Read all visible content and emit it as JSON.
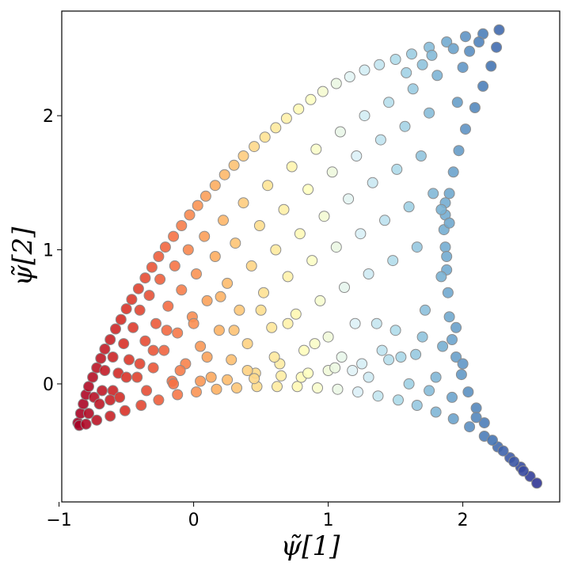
{
  "chart_data": {
    "type": "scatter",
    "title": "",
    "xlabel": "ψ̃[1]",
    "ylabel": "ψ̃[2]",
    "xlim": [
      -0.98,
      2.72
    ],
    "ylim": [
      -0.88,
      2.78
    ],
    "xticks": [
      -1,
      0,
      1,
      2
    ],
    "yticks": [
      0,
      1,
      2
    ],
    "xtick_labels": [
      "−1",
      "0",
      "1",
      "2"
    ],
    "ytick_labels": [
      "0",
      "1",
      "2"
    ],
    "grid": false,
    "legend": "none",
    "colormap": "RdYlBu (color encodes ψ̃[1])",
    "marker_edge_color": "#8c8c8c",
    "series": [
      {
        "values": [
          [
            -0.86,
            -0.29
          ],
          [
            -0.84,
            -0.22
          ],
          [
            -0.82,
            -0.15
          ],
          [
            -0.8,
            -0.08
          ],
          [
            -0.78,
            -0.02
          ],
          [
            -0.75,
            0.05
          ],
          [
            -0.72,
            0.12
          ],
          [
            -0.69,
            0.19
          ],
          [
            -0.66,
            0.26
          ],
          [
            -0.62,
            0.33
          ],
          [
            -0.58,
            0.41
          ],
          [
            -0.54,
            0.48
          ],
          [
            -0.5,
            0.56
          ],
          [
            -0.46,
            0.63
          ],
          [
            -0.41,
            0.71
          ],
          [
            -0.36,
            0.79
          ],
          [
            -0.31,
            0.87
          ],
          [
            -0.26,
            0.95
          ],
          [
            -0.21,
            1.02
          ],
          [
            -0.15,
            1.1
          ],
          [
            -0.09,
            1.18
          ],
          [
            -0.03,
            1.26
          ],
          [
            0.03,
            1.33
          ],
          [
            0.09,
            1.4
          ],
          [
            0.16,
            1.48
          ],
          [
            0.23,
            1.56
          ],
          [
            0.3,
            1.63
          ],
          [
            0.37,
            1.7
          ],
          [
            0.45,
            1.77
          ],
          [
            0.53,
            1.84
          ],
          [
            0.61,
            1.91
          ],
          [
            0.69,
            1.98
          ],
          [
            0.78,
            2.05
          ],
          [
            0.87,
            2.12
          ],
          [
            0.96,
            2.18
          ],
          [
            1.06,
            2.24
          ],
          [
            1.16,
            2.29
          ],
          [
            1.27,
            2.34
          ],
          [
            1.38,
            2.38
          ],
          [
            1.5,
            2.42
          ],
          [
            1.62,
            2.46
          ],
          [
            1.75,
            2.51
          ],
          [
            1.88,
            2.55
          ],
          [
            2.02,
            2.59
          ],
          [
            2.15,
            2.61
          ],
          [
            2.27,
            2.64
          ],
          [
            -0.85,
            -0.31
          ],
          [
            -0.8,
            -0.3
          ],
          [
            -0.72,
            -0.27
          ],
          [
            -0.62,
            -0.24
          ],
          [
            -0.51,
            -0.2
          ],
          [
            -0.39,
            -0.16
          ],
          [
            -0.26,
            -0.12
          ],
          [
            -0.12,
            -0.08
          ],
          [
            0.02,
            -0.06
          ],
          [
            0.17,
            -0.04
          ],
          [
            0.32,
            -0.03
          ],
          [
            0.47,
            -0.02
          ],
          [
            0.62,
            -0.02
          ],
          [
            0.77,
            -0.02
          ],
          [
            0.92,
            -0.03
          ],
          [
            1.07,
            -0.04
          ],
          [
            1.22,
            -0.06
          ],
          [
            1.37,
            -0.09
          ],
          [
            1.52,
            -0.12
          ],
          [
            1.66,
            -0.16
          ],
          [
            1.8,
            -0.21
          ],
          [
            1.93,
            -0.26
          ],
          [
            2.05,
            -0.32
          ],
          [
            2.16,
            -0.39
          ],
          [
            2.26,
            -0.47
          ],
          [
            2.35,
            -0.55
          ],
          [
            2.43,
            -0.62
          ],
          [
            2.5,
            -0.69
          ],
          [
            2.55,
            -0.74
          ],
          [
            2.25,
            2.51
          ],
          [
            2.21,
            2.37
          ],
          [
            2.15,
            2.22
          ],
          [
            2.09,
            2.06
          ],
          [
            2.02,
            1.9
          ],
          [
            1.97,
            1.74
          ],
          [
            1.93,
            1.58
          ],
          [
            1.9,
            1.42
          ],
          [
            1.87,
            1.26
          ],
          [
            1.86,
            1.15
          ],
          [
            1.87,
            1.02
          ],
          [
            1.88,
            0.85
          ],
          [
            1.89,
            0.68
          ],
          [
            1.9,
            0.5
          ],
          [
            1.92,
            0.33
          ],
          [
            1.95,
            0.2
          ],
          [
            1.99,
            0.07
          ],
          [
            2.04,
            -0.06
          ],
          [
            2.1,
            -0.18
          ],
          [
            2.16,
            -0.29
          ],
          [
            1.9,
            1.2
          ],
          [
            1.87,
            1.35
          ],
          [
            1.84,
            1.3
          ],
          [
            1.88,
            0.95
          ],
          [
            -0.78,
            -0.22
          ],
          [
            -0.74,
            -0.1
          ],
          [
            -0.68,
            -0.05
          ],
          [
            -0.66,
            0.1
          ],
          [
            -0.6,
            0.2
          ],
          [
            -0.56,
            0.08
          ],
          [
            -0.52,
            0.3
          ],
          [
            -0.48,
            0.18
          ],
          [
            -0.45,
            0.42
          ],
          [
            -0.42,
            0.05
          ],
          [
            -0.4,
            0.55
          ],
          [
            -0.36,
            0.32
          ],
          [
            -0.33,
            0.66
          ],
          [
            -0.3,
            0.12
          ],
          [
            -0.28,
            0.45
          ],
          [
            -0.25,
            0.78
          ],
          [
            -0.22,
            0.25
          ],
          [
            -0.19,
            0.58
          ],
          [
            -0.16,
            0.02
          ],
          [
            -0.14,
            0.88
          ],
          [
            -0.12,
            0.38
          ],
          [
            -0.09,
            0.7
          ],
          [
            -0.06,
            0.15
          ],
          [
            -0.04,
            1.0
          ],
          [
            -0.01,
            0.5
          ],
          [
            0.02,
            0.82
          ],
          [
            0.05,
            0.28
          ],
          [
            0.08,
            1.1
          ],
          [
            0.1,
            0.62
          ],
          [
            0.13,
            0.05
          ],
          [
            0.16,
            0.95
          ],
          [
            0.19,
            0.4
          ],
          [
            0.22,
            1.22
          ],
          [
            0.25,
            0.75
          ],
          [
            0.28,
            0.18
          ],
          [
            0.31,
            1.05
          ],
          [
            0.34,
            0.55
          ],
          [
            0.37,
            1.35
          ],
          [
            0.4,
            0.3
          ],
          [
            0.43,
            0.88
          ],
          [
            0.46,
            0.08
          ],
          [
            0.49,
            1.18
          ],
          [
            0.52,
            0.68
          ],
          [
            0.55,
            1.48
          ],
          [
            0.58,
            0.42
          ],
          [
            0.61,
            1.0
          ],
          [
            0.64,
            0.15
          ],
          [
            0.67,
            1.3
          ],
          [
            0.7,
            0.8
          ],
          [
            0.73,
            1.62
          ],
          [
            0.76,
            0.52
          ],
          [
            0.79,
            1.12
          ],
          [
            0.82,
            0.25
          ],
          [
            0.85,
            1.45
          ],
          [
            0.88,
            0.92
          ],
          [
            0.91,
            1.75
          ],
          [
            0.94,
            0.62
          ],
          [
            0.97,
            1.25
          ],
          [
            1.0,
            0.35
          ],
          [
            1.03,
            1.58
          ],
          [
            1.06,
            1.02
          ],
          [
            1.09,
            1.88
          ],
          [
            1.12,
            0.72
          ],
          [
            1.15,
            1.38
          ],
          [
            1.18,
            0.1
          ],
          [
            1.21,
            1.7
          ],
          [
            1.24,
            1.12
          ],
          [
            1.27,
            2.0
          ],
          [
            1.3,
            0.82
          ],
          [
            1.33,
            1.5
          ],
          [
            1.36,
            0.45
          ],
          [
            1.39,
            1.82
          ],
          [
            1.42,
            1.22
          ],
          [
            1.45,
            2.1
          ],
          [
            1.48,
            0.92
          ],
          [
            1.51,
            1.6
          ],
          [
            1.54,
            0.2
          ],
          [
            1.57,
            1.92
          ],
          [
            1.6,
            1.32
          ],
          [
            1.63,
            2.2
          ],
          [
            1.66,
            1.02
          ],
          [
            1.69,
            1.7
          ],
          [
            1.72,
            0.55
          ],
          [
            1.75,
            2.02
          ],
          [
            1.78,
            1.42
          ],
          [
            1.81,
            2.3
          ],
          [
            1.84,
            0.8
          ],
          [
            1.8,
            0.05
          ],
          [
            1.7,
            0.35
          ],
          [
            1.6,
            0.0
          ],
          [
            1.5,
            0.4
          ],
          [
            1.4,
            0.25
          ],
          [
            1.3,
            0.05
          ],
          [
            1.2,
            0.45
          ],
          [
            1.1,
            0.2
          ],
          [
            1.0,
            0.1
          ],
          [
            0.9,
            0.3
          ],
          [
            0.8,
            0.05
          ],
          [
            0.7,
            0.45
          ],
          [
            0.6,
            0.2
          ],
          [
            0.5,
            0.55
          ],
          [
            0.4,
            0.1
          ],
          [
            0.3,
            0.4
          ],
          [
            0.2,
            0.65
          ],
          [
            0.1,
            0.2
          ],
          [
            0.0,
            0.45
          ],
          [
            -0.1,
            0.1
          ],
          [
            -0.2,
            0.4
          ],
          [
            -0.3,
            0.25
          ],
          [
            -0.4,
            0.15
          ],
          [
            -0.5,
            0.05
          ],
          [
            -0.6,
            -0.05
          ],
          [
            -0.7,
            -0.15
          ],
          [
            -0.62,
            -0.12
          ],
          [
            -0.55,
            -0.1
          ],
          [
            -0.35,
            -0.05
          ],
          [
            -0.15,
            0.0
          ],
          [
            0.05,
            0.02
          ],
          [
            0.25,
            0.03
          ],
          [
            0.45,
            0.04
          ],
          [
            0.65,
            0.06
          ],
          [
            0.85,
            0.08
          ],
          [
            1.05,
            0.12
          ],
          [
            1.25,
            0.15
          ],
          [
            1.45,
            0.18
          ],
          [
            1.65,
            0.22
          ],
          [
            1.85,
            0.28
          ],
          [
            1.95,
            0.42
          ],
          [
            2.0,
            0.15
          ],
          [
            1.92,
            -0.1
          ],
          [
            1.75,
            -0.05
          ],
          [
            2.1,
            -0.25
          ],
          [
            2.22,
            -0.42
          ],
          [
            2.3,
            -0.5
          ],
          [
            2.38,
            -0.58
          ],
          [
            2.45,
            -0.65
          ],
          [
            1.58,
            2.32
          ],
          [
            1.7,
            2.38
          ],
          [
            1.77,
            2.45
          ],
          [
            1.93,
            2.5
          ],
          [
            2.05,
            2.48
          ],
          [
            2.12,
            2.55
          ],
          [
            2.0,
            2.36
          ],
          [
            1.96,
            2.1
          ]
        ]
      }
    ]
  }
}
